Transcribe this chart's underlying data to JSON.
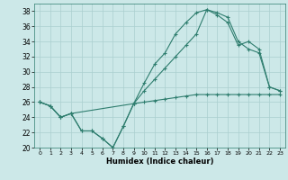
{
  "xlabel": "Humidex (Indice chaleur)",
  "bg_color": "#cce8e8",
  "grid_color": "#aacfcf",
  "line_color": "#2e7d6e",
  "xlim": [
    -0.5,
    23.5
  ],
  "ylim": [
    20,
    39
  ],
  "yticks": [
    20,
    22,
    24,
    26,
    28,
    30,
    32,
    34,
    36,
    38
  ],
  "xticks": [
    0,
    1,
    2,
    3,
    4,
    5,
    6,
    7,
    8,
    9,
    10,
    11,
    12,
    13,
    14,
    15,
    16,
    17,
    18,
    19,
    20,
    21,
    22,
    23
  ],
  "series1_x": [
    0,
    1,
    2,
    3,
    4,
    5,
    6,
    7,
    8,
    9,
    10,
    11,
    12,
    13,
    14,
    15,
    16,
    17,
    18,
    19,
    20,
    21,
    22,
    23
  ],
  "series1_y": [
    26.0,
    25.5,
    24.0,
    24.5,
    22.2,
    22.2,
    21.2,
    20.0,
    22.8,
    25.8,
    28.5,
    31.0,
    32.5,
    35.0,
    36.5,
    37.8,
    38.2,
    37.8,
    37.2,
    34.0,
    33.0,
    32.5,
    28.0,
    27.5
  ],
  "series2_x": [
    0,
    1,
    2,
    3,
    4,
    5,
    6,
    7,
    8,
    9,
    10,
    11,
    12,
    13,
    14,
    15,
    16,
    17,
    18,
    19,
    20,
    21,
    22,
    23
  ],
  "series2_y": [
    26.0,
    25.5,
    24.0,
    24.5,
    22.2,
    22.2,
    21.2,
    20.0,
    22.8,
    25.8,
    26.0,
    26.2,
    26.4,
    26.6,
    26.8,
    27.0,
    27.0,
    27.0,
    27.0,
    27.0,
    27.0,
    27.0,
    27.0,
    27.0
  ],
  "series3_x": [
    0,
    1,
    2,
    3,
    9,
    10,
    11,
    12,
    13,
    14,
    15,
    16,
    17,
    18,
    19,
    20,
    21,
    22,
    23
  ],
  "series3_y": [
    26.0,
    25.5,
    24.0,
    24.5,
    25.8,
    27.5,
    29.0,
    30.5,
    32.0,
    33.5,
    35.0,
    38.2,
    37.5,
    36.5,
    33.5,
    34.0,
    33.0,
    28.0,
    27.5
  ]
}
